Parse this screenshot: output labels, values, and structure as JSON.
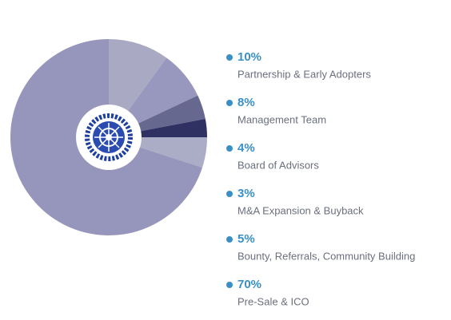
{
  "chart_data": {
    "type": "pie",
    "categories": [
      "Partnership & Early Adopters",
      "Management Team",
      "Board of Advisors",
      "M&A Expansion & Buyback",
      "Bounty, Referrals, Community Building",
      "Pre-Sale & ICO"
    ],
    "values": [
      10,
      8,
      4,
      3,
      5,
      70
    ],
    "value_labels": [
      "10%",
      "8%",
      "4%",
      "3%",
      "5%",
      "70%"
    ],
    "colors": [
      "#a9a9c4",
      "#9898bf",
      "#67688f",
      "#303163",
      "#abacc6",
      "#9696bc"
    ],
    "legend_color": "#3a8fc6"
  }
}
